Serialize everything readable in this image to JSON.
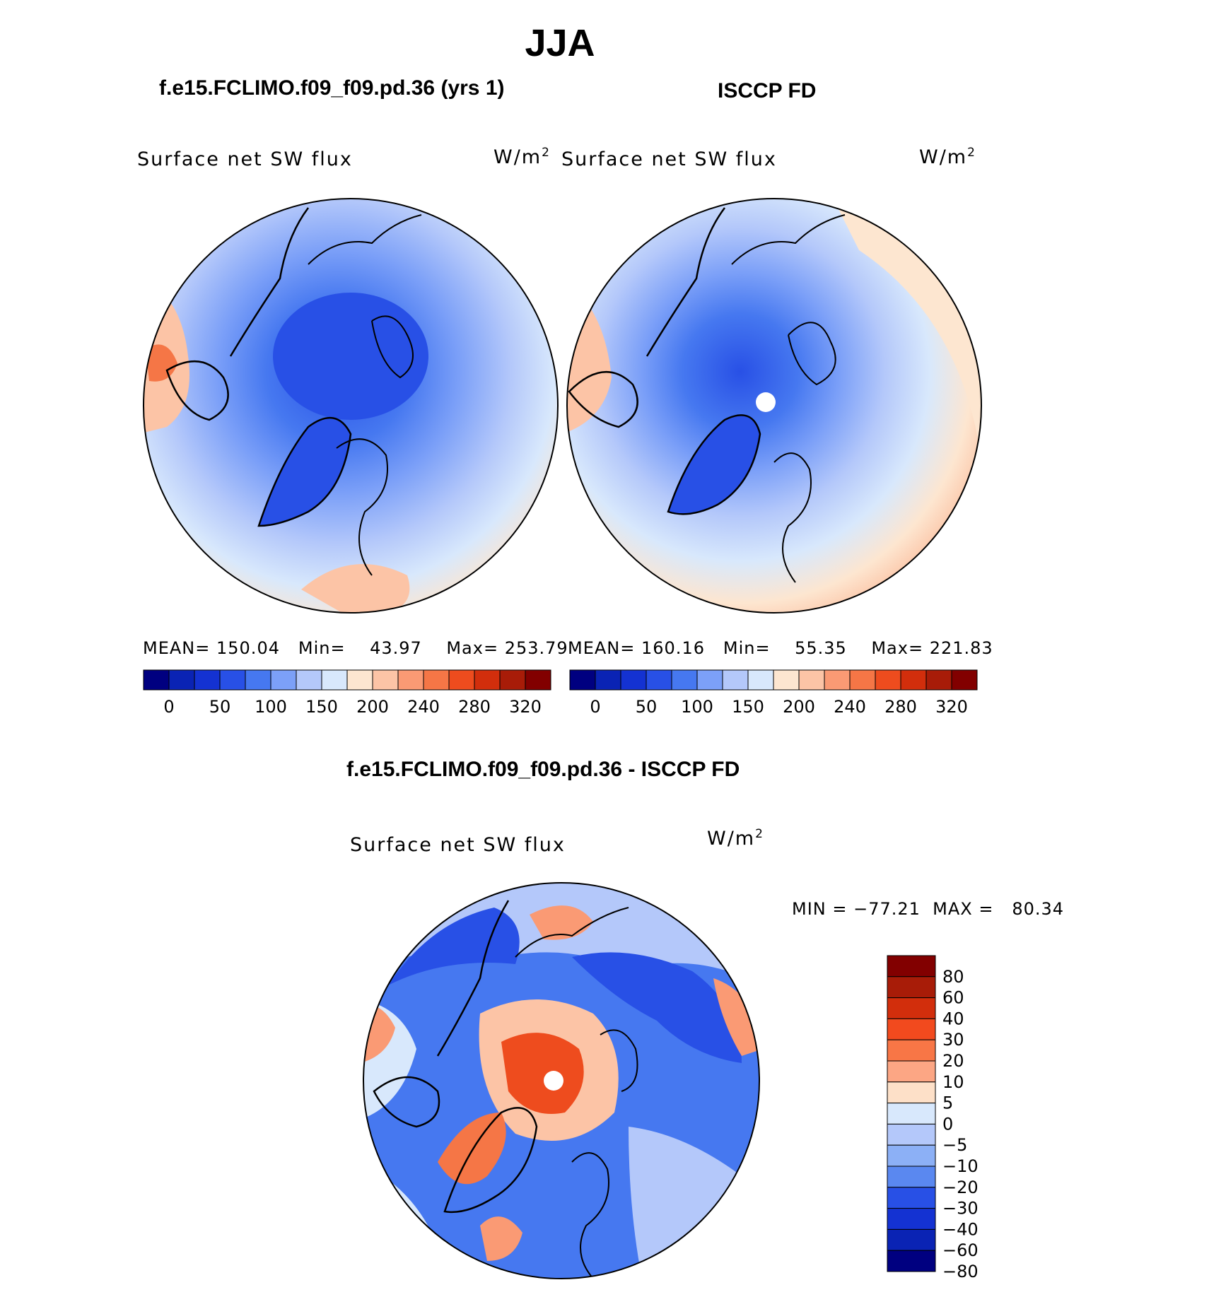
{
  "page_title": "JJA",
  "panels": {
    "model": {
      "title": "f.e15.FCLIMO.f09_f09.pd.36 (yrs 1)",
      "variable": "Surface net SW flux",
      "units": "W/m",
      "units_sup": "2",
      "stats": {
        "mean_label": "MEAN=",
        "mean": "150.04",
        "min_label": "Min=",
        "min": "43.97",
        "max_label": "Max=",
        "max": "253.79"
      }
    },
    "obs": {
      "title": "ISCCP FD",
      "variable": "Surface net SW flux",
      "units": "W/m",
      "units_sup": "2",
      "stats": {
        "mean_label": "MEAN=",
        "mean": "160.16",
        "min_label": "Min=",
        "min": "55.35",
        "max_label": "Max=",
        "max": "221.83"
      }
    },
    "diff": {
      "title": "f.e15.FCLIMO.f09_f09.pd.36 - ISCCP FD",
      "variable": "Surface net SW flux",
      "units": "W/m",
      "units_sup": "2",
      "minmax": "MIN = −77.21  MAX =   80.34"
    }
  },
  "colorbar_abs": {
    "labels": [
      "0",
      "50",
      "100",
      "150",
      "200",
      "240",
      "280",
      "320"
    ],
    "colors": [
      "#000080",
      "#0a23b4",
      "#1432d2",
      "#2850e6",
      "#4678f0",
      "#7ca0f8",
      "#b4c8fa",
      "#d8e8fc",
      "#fde6d0",
      "#fcc4a6",
      "#fa9a74",
      "#f57646",
      "#ee4c1e",
      "#d22e0c",
      "#a81c08",
      "#820000"
    ]
  },
  "colorbar_diff": {
    "labels": [
      "80",
      "60",
      "40",
      "30",
      "20",
      "10",
      "5",
      "0",
      "−5",
      "−10",
      "−20",
      "−30",
      "−40",
      "−60",
      "−80"
    ],
    "colors": [
      "#820000",
      "#a81c08",
      "#d22e0c",
      "#f24a1e",
      "#f87646",
      "#fca684",
      "#fde0c8",
      "#d8e8fc",
      "#b4c8fa",
      "#8cb0f6",
      "#5a88f0",
      "#2850e6",
      "#1432d2",
      "#0a23b4",
      "#000080"
    ]
  },
  "map_colors": {
    "deep_blue": "#2850e6",
    "mid_blue": "#4678f0",
    "light_blue": "#7ca0f8",
    "pale_blue": "#d8e8fc",
    "pale_orange": "#fde6d0",
    "orange": "#fa9a74",
    "red": "#ee4c1e"
  }
}
